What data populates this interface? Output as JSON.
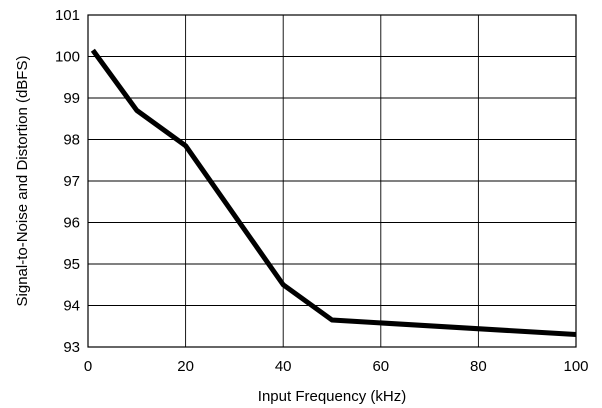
{
  "chart_data": {
    "type": "line",
    "title": "",
    "xlabel": "Input Frequency (kHz)",
    "ylabel": "Signal-to-Noise and Distortion (dBFS)",
    "xlim": [
      0,
      100
    ],
    "ylim": [
      93,
      101
    ],
    "xticks": [
      0,
      20,
      40,
      60,
      80,
      100
    ],
    "yticks": [
      93,
      94,
      95,
      96,
      97,
      98,
      99,
      100,
      101
    ],
    "grid": true,
    "legend": "none",
    "series": [
      {
        "x": [
          1,
          10,
          20,
          40,
          50,
          100
        ],
        "y": [
          100.15,
          98.7,
          97.85,
          94.5,
          93.65,
          93.3
        ],
        "color": "#000000"
      }
    ]
  }
}
